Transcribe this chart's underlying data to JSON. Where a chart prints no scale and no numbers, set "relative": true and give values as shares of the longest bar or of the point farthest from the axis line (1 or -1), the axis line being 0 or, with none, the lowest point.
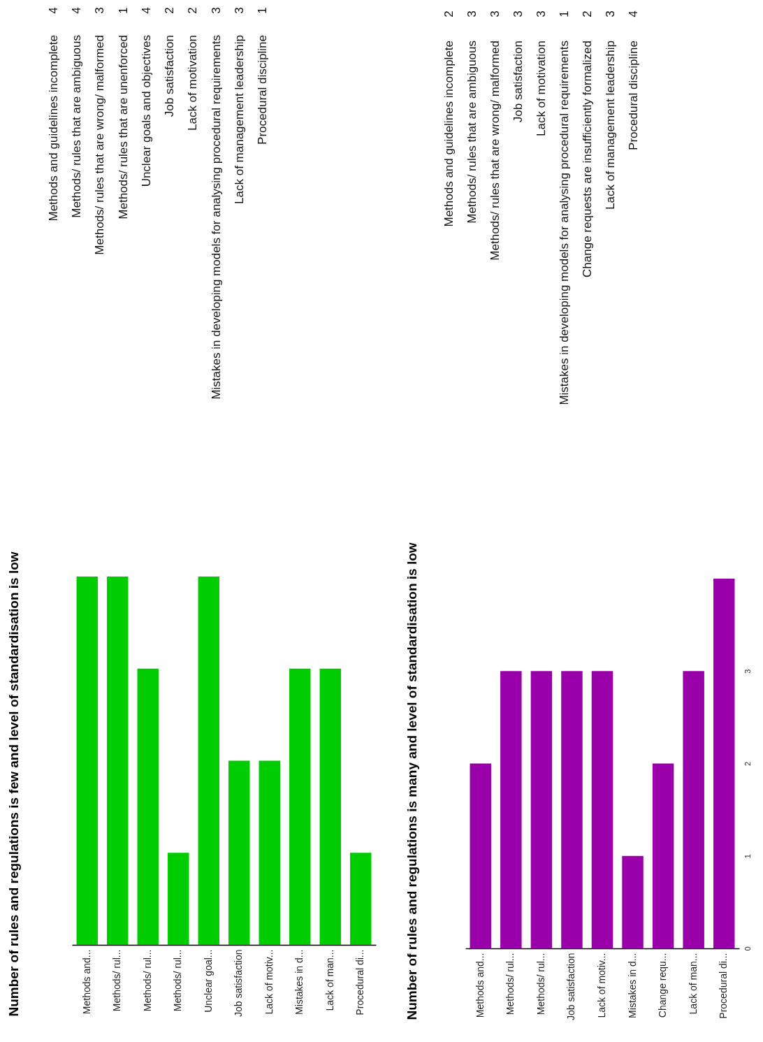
{
  "chart_data": [
    {
      "type": "bar",
      "title": "Number of rules and regulations is few and level of standardisation is low",
      "tick_labels": "x",
      "relative": true,
      "color": "#00cc00",
      "categories": [
        "Methods and...",
        "Methods/ rul...",
        "Methods/ rul...",
        "Methods/ rul...",
        "Unclear goal...",
        "Job satisfaction",
        "Lack of motiv...",
        "Mistakes in d...",
        "Lack of man...",
        "Procedural di..."
      ],
      "values": [
        1,
        1,
        0.75,
        0.25,
        1,
        0.5,
        0.5,
        0.75,
        0.75,
        0.25
      ],
      "annotations": [
        "Methods and guidelines incomplete",
        "Methods/ rules that are ambiguous",
        "Methods/ rules that are wrong/ malformed",
        "Methods/ rules that are unenforced",
        "Unclear goals and objectives",
        "Job satisfaction",
        "Lack of motivation",
        "Mistakes in developing models for analysing procedural requirements",
        "Lack of management leadership",
        "Procedural discipline",
        "4",
        "4",
        "3",
        "1",
        "4",
        "2",
        "2",
        "3",
        "3",
        "1"
      ]
    },
    {
      "type": "bar",
      "title": "Number of rules and regulations is many and level of standardisation is low",
      "color": "#9900aa",
      "ylim": [
        0,
        4
      ],
      "yticks": [
        0,
        1,
        2,
        3
      ],
      "categories": [
        "Methods and...",
        "Methods/ rul...",
        "Methods/ rul...",
        "Job satisfaction",
        "Lack of motiv...",
        "Mistakes in d...",
        "Change requ...",
        "Lack of man...",
        "Procedural di..."
      ],
      "values": [
        2,
        3,
        3,
        3,
        3,
        1,
        2,
        3,
        4
      ],
      "annotations": [
        "Methods and guidelines incomplete",
        "Methods/ rules that are ambiguous",
        "Methods/ rules that are wrong/ malformed",
        "Job satisfaction",
        "Lack of motivation",
        "Mistakes in developing models for analysing procedural requirements",
        "Change requests are insufficiently formalized",
        "Lack of management leadership",
        "Procedural discipline",
        "2",
        "3",
        "3",
        "3",
        "3",
        "1",
        "2",
        "3",
        "4"
      ]
    }
  ]
}
